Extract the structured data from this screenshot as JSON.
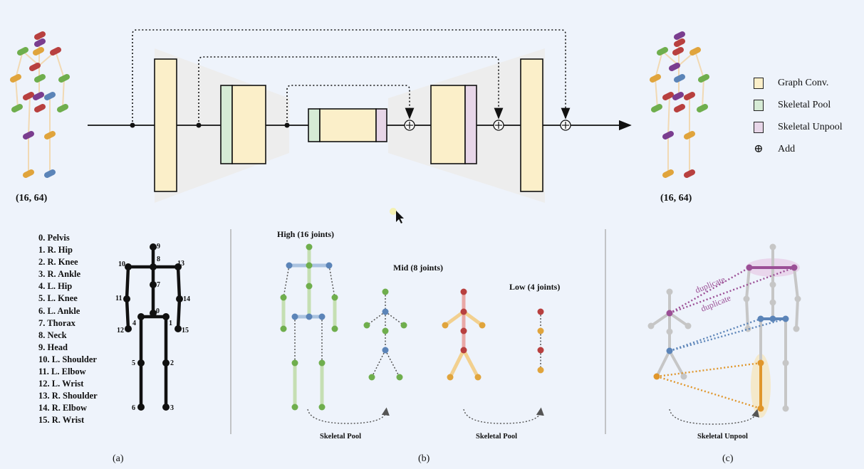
{
  "shape_in": "(16, 64)",
  "shape_out": "(16, 64)",
  "legend": [
    {
      "label": "Graph Conv.",
      "color": "#fbefc9"
    },
    {
      "label": "Skeletal Pool",
      "color": "#d6ebd5"
    },
    {
      "label": "Skeletal Unpool",
      "color": "#e7d6e8"
    },
    {
      "label": "Add",
      "symbol": "⊕"
    }
  ],
  "joints": [
    "0. Pelvis",
    "1. R. Hip",
    "2. R. Knee",
    "3. R. Ankle",
    "4. L. Hip",
    "5. L. Knee",
    "6. L. Ankle",
    "7. Thorax",
    "8. Neck",
    "9. Head",
    "10. L. Shoulder",
    "11. L. Elbow",
    "12. L. Wrist",
    "13. R. Shoulder",
    "14. R. Elbow",
    "15. R. Wrist"
  ],
  "skeleton_numbers": [
    "0",
    "1",
    "2",
    "3",
    "4",
    "5",
    "6",
    "7",
    "8",
    "9",
    "10",
    "11",
    "12",
    "13",
    "14",
    "15"
  ],
  "levels": {
    "high": "High (16 joints)",
    "mid": "Mid (8 joints)",
    "low": "Low (4 joints)"
  },
  "pool_label_1": "Skeletal Pool",
  "pool_label_2": "Skeletal Pool",
  "unpool_label": "Skeletal Unpool",
  "duplicate_1": "duplicate",
  "duplicate_2": "duplicate",
  "captions": {
    "a": "(a)",
    "b": "(b)",
    "c": "(c)"
  },
  "colors": {
    "graph_conv": "#fbefc9",
    "pool": "#d6ebd5",
    "unpool": "#e7d6e8",
    "green": "#6fae4d",
    "blue": "#5b84b8",
    "red": "#b8403f",
    "yellow": "#e0a43c",
    "purple": "#9b4f96",
    "orange": "#e0962b",
    "grey": "#c6c6c6"
  }
}
